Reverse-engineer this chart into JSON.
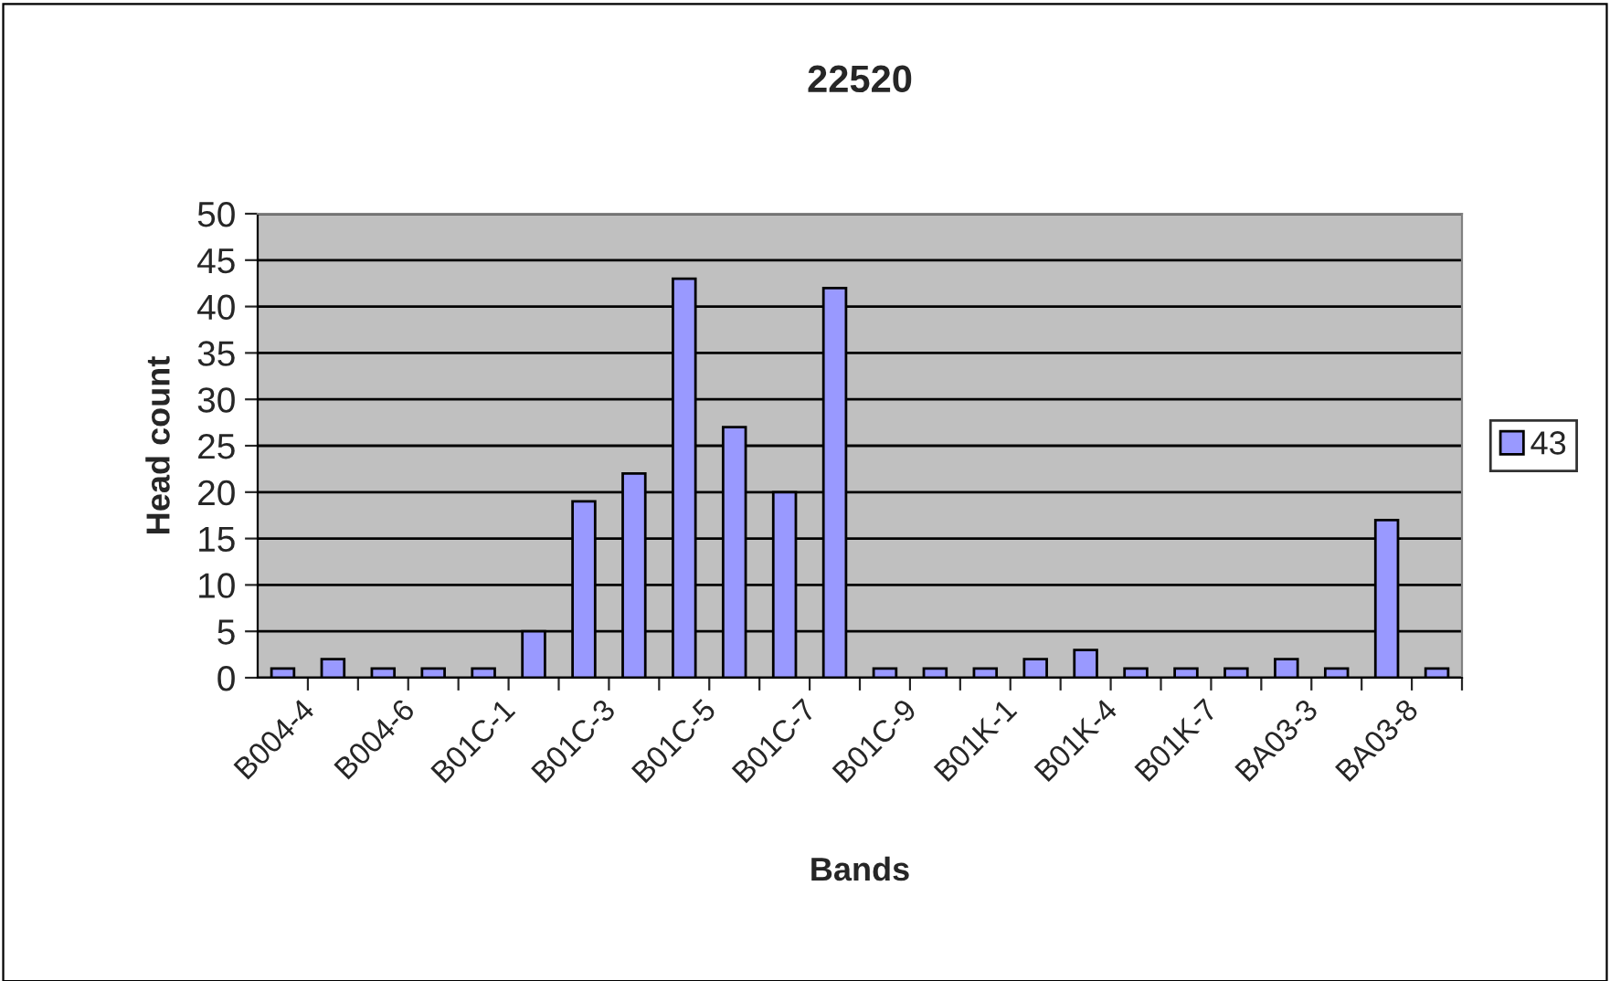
{
  "chart_data": {
    "type": "bar",
    "title": "22520",
    "xlabel": "Bands",
    "ylabel": "Head count",
    "categories": [
      "B004-4",
      null,
      "B004-6",
      null,
      "B01C-1",
      null,
      "B01C-3",
      null,
      "B01C-5",
      null,
      "B01C-7",
      null,
      "B01C-9",
      null,
      "B01K-1",
      null,
      "B01K-4",
      null,
      "B01K-7",
      null,
      "BA03-3",
      null,
      "BA03-8",
      null
    ],
    "series": [
      {
        "name": "43",
        "color": "#9999ff",
        "values": [
          1,
          2,
          1,
          1,
          1,
          5,
          19,
          22,
          43,
          27,
          20,
          42,
          1,
          1,
          1,
          2,
          3,
          1,
          1,
          1,
          2,
          1,
          17,
          1
        ]
      }
    ],
    "ylim": [
      0,
      50
    ],
    "yticks": [
      0,
      5,
      10,
      15,
      20,
      25,
      30,
      35,
      40,
      45,
      50
    ],
    "grid": "y",
    "legend": "right"
  }
}
